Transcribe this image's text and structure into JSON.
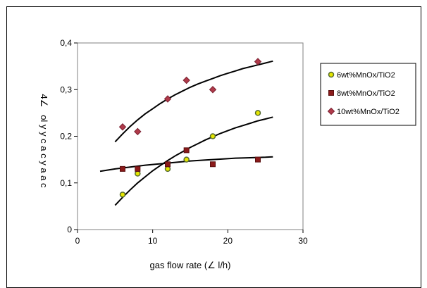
{
  "chart_data": {
    "type": "scatter",
    "xlabel": "gas flow rate (∠ l/h)",
    "ylabel": "4∠   ol y y c a c y a a c",
    "xlim": [
      0,
      30
    ],
    "ylim": [
      0,
      0.4
    ],
    "x_ticks": [
      "0",
      "10",
      "20",
      "30"
    ],
    "y_ticks": [
      "0",
      "0,1",
      "0,2",
      "0,3",
      "0,4"
    ],
    "grid": false,
    "legend_position": "right",
    "series": [
      {
        "name": "6wt%MnOx/TiO2",
        "marker": "circle",
        "color": "#e6e600",
        "x": [
          6,
          8,
          12,
          14.5,
          18,
          24
        ],
        "y": [
          0.075,
          0.12,
          0.13,
          0.15,
          0.2,
          0.25
        ],
        "trend": {
          "x": [
            5,
            6,
            7,
            8,
            9,
            10,
            11,
            12,
            13,
            14,
            15,
            16,
            17,
            18,
            19,
            20,
            21,
            22,
            23,
            24,
            25,
            26
          ],
          "y": [
            0.052,
            0.069,
            0.085,
            0.1,
            0.113,
            0.126,
            0.137,
            0.148,
            0.158,
            0.167,
            0.176,
            0.184,
            0.192,
            0.199,
            0.206,
            0.212,
            0.218,
            0.223,
            0.228,
            0.233,
            0.237,
            0.241
          ]
        }
      },
      {
        "name": "8wt%MnOx/TiO2",
        "marker": "square",
        "color": "#8b1a1a",
        "x": [
          6,
          8,
          12,
          14.5,
          18,
          24
        ],
        "y": [
          0.13,
          0.13,
          0.14,
          0.17,
          0.14,
          0.15
        ],
        "trend": {
          "x": [
            3,
            5,
            7,
            9,
            11,
            13,
            15,
            17,
            19,
            21,
            23,
            25,
            26
          ],
          "y": [
            0.125,
            0.13,
            0.134,
            0.138,
            0.141,
            0.144,
            0.147,
            0.149,
            0.151,
            0.153,
            0.154,
            0.155,
            0.156
          ]
        }
      },
      {
        "name": "10wt%MnOx/TiO2",
        "marker": "diamond",
        "color": "#b03a4a",
        "x": [
          6,
          8,
          12,
          14.5,
          18,
          24
        ],
        "y": [
          0.22,
          0.21,
          0.28,
          0.32,
          0.3,
          0.36
        ],
        "trend": {
          "x": [
            5,
            6,
            7,
            8,
            9,
            10,
            11,
            12,
            13,
            14,
            15,
            16,
            17,
            18,
            19,
            20,
            21,
            22,
            23,
            24,
            25,
            26
          ],
          "y": [
            0.188,
            0.205,
            0.221,
            0.235,
            0.248,
            0.259,
            0.27,
            0.28,
            0.289,
            0.297,
            0.305,
            0.312,
            0.318,
            0.324,
            0.33,
            0.335,
            0.34,
            0.345,
            0.349,
            0.353,
            0.357,
            0.361
          ]
        }
      }
    ]
  }
}
